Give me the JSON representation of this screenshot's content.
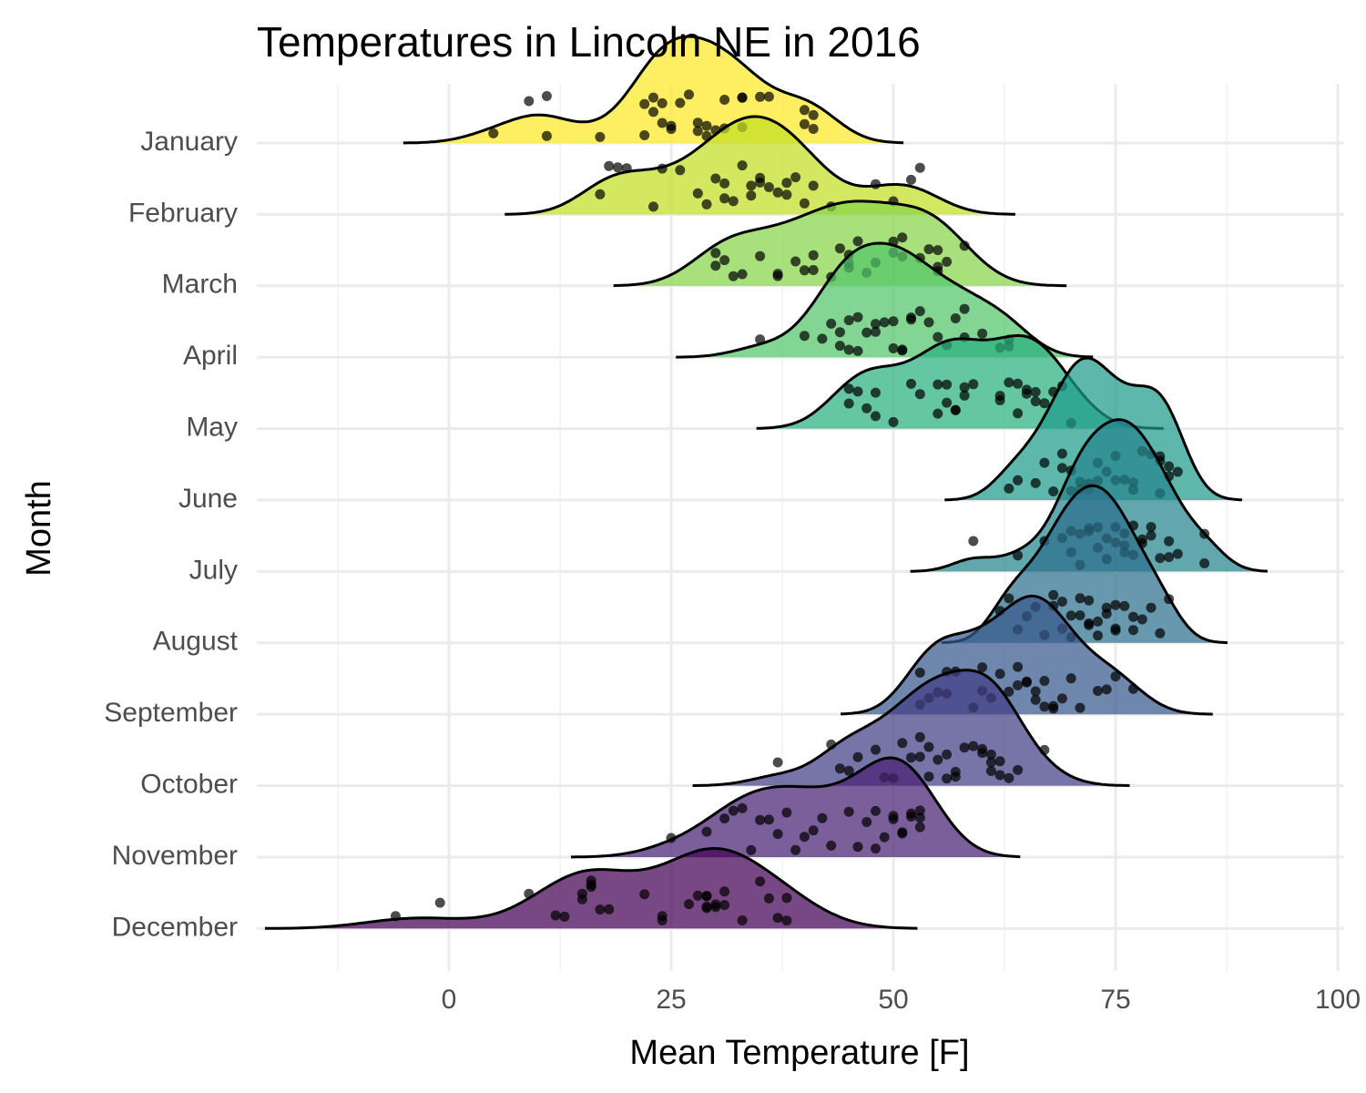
{
  "chart_data": {
    "type": "ridgeline",
    "title": "Temperatures in Lincoln NE in 2016",
    "xlabel": "Mean Temperature [F]",
    "ylabel": "Month",
    "xlim": [
      -25,
      100
    ],
    "xticks": [
      0,
      25,
      50,
      75,
      100
    ],
    "grid": true,
    "series": [
      {
        "name": "January",
        "color": "#FDE725",
        "values": [
          5,
          9,
          11,
          11,
          17,
          22,
          22,
          23,
          23,
          24,
          24,
          25,
          25,
          26,
          27,
          28,
          28,
          29,
          29,
          30,
          31,
          31,
          33,
          33,
          35,
          36,
          40,
          40,
          41,
          41,
          33
        ]
      },
      {
        "name": "February",
        "color": "#C2DF23",
        "values": [
          17,
          18,
          19,
          20,
          23,
          24,
          26,
          28,
          29,
          30,
          31,
          31,
          32,
          33,
          34,
          34,
          35,
          35,
          36,
          37,
          38,
          38,
          39,
          40,
          41,
          43,
          48,
          50,
          52,
          53
        ]
      },
      {
        "name": "March",
        "color": "#86D549",
        "values": [
          30,
          30,
          31,
          32,
          33,
          35,
          37,
          37,
          39,
          40,
          41,
          41,
          43,
          44,
          45,
          45,
          45,
          46,
          47,
          48,
          50,
          50,
          51,
          53,
          54,
          55,
          55,
          55,
          56,
          58,
          51
        ]
      },
      {
        "name": "April",
        "color": "#52C569",
        "values": [
          35,
          40,
          42,
          43,
          44,
          44,
          45,
          45,
          46,
          47,
          48,
          48,
          49,
          50,
          50,
          51,
          52,
          52,
          53,
          54,
          55,
          56,
          57,
          58,
          58,
          60,
          62,
          63,
          63,
          46,
          51
        ]
      },
      {
        "name": "May",
        "color": "#2AB07F",
        "values": [
          45,
          45,
          46,
          47,
          48,
          48,
          50,
          52,
          53,
          55,
          55,
          56,
          56,
          57,
          57,
          58,
          58,
          59,
          62,
          62,
          63,
          64,
          64,
          65,
          65,
          66,
          66,
          67,
          68,
          69,
          70
        ]
      },
      {
        "name": "June",
        "color": "#1E9B8A",
        "values": [
          63,
          64,
          66,
          67,
          68,
          69,
          69,
          70,
          70,
          71,
          71,
          72,
          72,
          72,
          73,
          73,
          74,
          75,
          75,
          76,
          77,
          77,
          78,
          79,
          80,
          80,
          80,
          81,
          81,
          82
        ]
      },
      {
        "name": "July",
        "color": "#25858E",
        "values": [
          59,
          64,
          67,
          69,
          70,
          70,
          71,
          71,
          72,
          72,
          73,
          73,
          74,
          74,
          75,
          75,
          76,
          76,
          76,
          77,
          77,
          78,
          78,
          79,
          79,
          80,
          81,
          81,
          82,
          85,
          85
        ]
      },
      {
        "name": "August",
        "color": "#2D708E",
        "values": [
          62,
          63,
          64,
          65,
          66,
          67,
          68,
          68,
          69,
          69,
          70,
          70,
          71,
          71,
          72,
          72,
          72,
          73,
          73,
          74,
          74,
          75,
          75,
          76,
          77,
          77,
          78,
          79,
          80,
          81,
          75
        ]
      },
      {
        "name": "September",
        "color": "#38598C",
        "values": [
          53,
          54,
          55,
          56,
          56,
          57,
          59,
          60,
          61,
          62,
          63,
          64,
          64,
          65,
          65,
          66,
          66,
          67,
          67,
          68,
          68,
          69,
          70,
          71,
          73,
          74,
          75,
          77,
          53,
          60
        ]
      },
      {
        "name": "October",
        "color": "#433E85",
        "values": [
          37,
          43,
          44,
          45,
          46,
          48,
          49,
          50,
          51,
          52,
          53,
          54,
          55,
          56,
          56,
          57,
          57,
          58,
          59,
          60,
          60,
          61,
          61,
          62,
          62,
          63,
          64,
          67,
          54,
          53,
          61
        ]
      },
      {
        "name": "November",
        "color": "#482173",
        "values": [
          25,
          29,
          31,
          32,
          33,
          34,
          35,
          36,
          37,
          38,
          39,
          40,
          41,
          42,
          43,
          45,
          46,
          47,
          48,
          48,
          49,
          50,
          50,
          51,
          51,
          52,
          53,
          53,
          53,
          52
        ]
      },
      {
        "name": "December",
        "color": "#440154",
        "values": [
          -6,
          -1,
          9,
          12,
          13,
          15,
          15,
          16,
          16,
          17,
          18,
          22,
          24,
          24,
          27,
          28,
          29,
          29,
          29,
          30,
          30,
          31,
          33,
          35,
          36,
          37,
          38,
          38,
          16,
          29,
          31
        ]
      }
    ]
  }
}
